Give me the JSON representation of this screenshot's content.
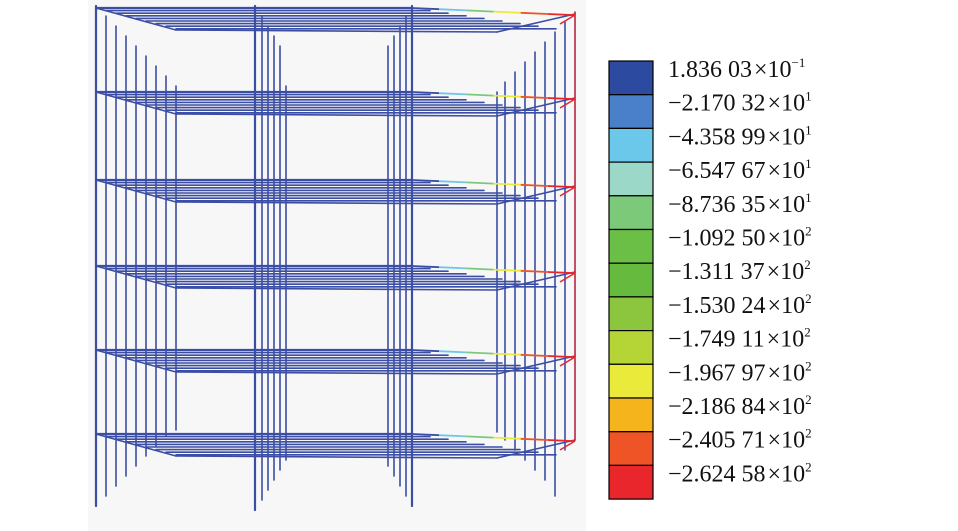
{
  "legend": {
    "entries": [
      {
        "color": "#2c4aa0",
        "mantissa": "1.836 03",
        "exponent": "−1"
      },
      {
        "color": "#4a7fca",
        "mantissa": "−2.170 32",
        "exponent": "1"
      },
      {
        "color": "#6cc8ea",
        "mantissa": "−4.358 99",
        "exponent": "1"
      },
      {
        "color": "#9cd8c8",
        "mantissa": "−6.547 67",
        "exponent": "1"
      },
      {
        "color": "#7cc97a",
        "mantissa": "−8.736 35",
        "exponent": "1"
      },
      {
        "color": "#6cbf46",
        "mantissa": "−1.092 50",
        "exponent": "2"
      },
      {
        "color": "#66bb3f",
        "mantissa": "−1.311 37",
        "exponent": "2"
      },
      {
        "color": "#8cc63e",
        "mantissa": "−1.530 24",
        "exponent": "2"
      },
      {
        "color": "#b5d435",
        "mantissa": "−1.749 11",
        "exponent": "2"
      },
      {
        "color": "#eaea3a",
        "mantissa": "−1.967 97",
        "exponent": "2"
      },
      {
        "color": "#f6b41c",
        "mantissa": "−2.186 84",
        "exponent": "2"
      },
      {
        "color": "#ef5426",
        "mantissa": "−2.405 71",
        "exponent": "2"
      },
      {
        "color": "#e8262c",
        "mantissa": "−2.624 58",
        "exponent": "2"
      }
    ],
    "times_symbol": "×",
    "base": "10"
  },
  "colors": {
    "frame": "#3b4ea3",
    "background": "#f7f7f7"
  }
}
